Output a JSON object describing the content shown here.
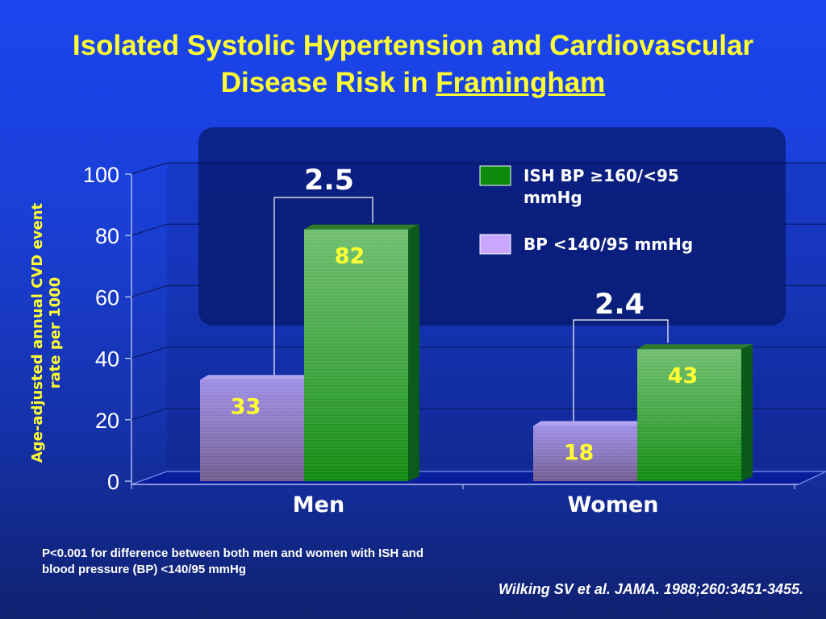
{
  "slide": {
    "title_line1": "Isolated Systolic Hypertension and Cardiovascular",
    "title_line2_prefix": "Disease Risk in ",
    "title_line2_link": "Framingham",
    "footnote_line1": "P<0.001 for difference between both men and women with ISH and",
    "footnote_line2": "blood pressure (BP) <140/95 mmHg",
    "citation": "Wilking SV et al. JAMA. 1988;260:3451-3455."
  },
  "colors": {
    "title": "#ffff33",
    "ylabel": "#ffff33",
    "ish_bar": "#1f8f1f",
    "normal_bar": "#9b86d8",
    "data_label": "#ffff33",
    "legend_panel": "#0a1f7a"
  },
  "chart_data": {
    "type": "bar",
    "categories": [
      "Men",
      "Women"
    ],
    "series": [
      {
        "name": "BP <140/95 mmHg",
        "values": [
          33,
          18
        ],
        "legend_swatch": "#c9a6ff"
      },
      {
        "name": "ISH BP ≥160/<95 mmHg",
        "values": [
          82,
          43
        ],
        "legend_swatch": "#0b8a0b"
      }
    ],
    "legend_order": [
      1,
      0
    ],
    "ylabel": "Age-adjusted annual CVD event rate per 1000",
    "ylim": [
      0,
      100
    ],
    "yticks": [
      0,
      20,
      40,
      60,
      80,
      100
    ],
    "grid": true,
    "legend_position": "top-right",
    "ratios": [
      {
        "category": "Men",
        "label": "2.5"
      },
      {
        "category": "Women",
        "label": "2.4"
      }
    ]
  }
}
